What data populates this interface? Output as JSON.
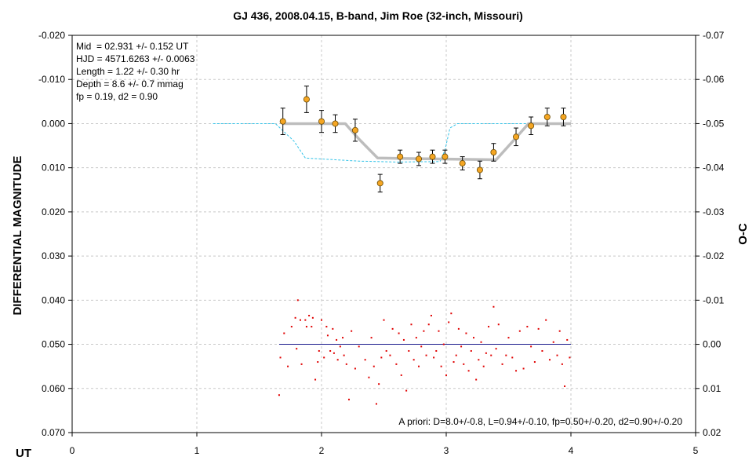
{
  "chart_data": {
    "type": "scatter",
    "title": "GJ 436, 2008.04.15, B-band, Jim Roe (32-inch, Missouri)",
    "xlabel": "UT",
    "ylabel": "DIFFERENTIAL MAGNITUDE",
    "y2label": "O-C",
    "xlim": [
      0,
      5
    ],
    "ylim": [
      -0.02,
      0.07
    ],
    "y2lim": [
      -0.07,
      0.02
    ],
    "y_inverted": true,
    "grid": true,
    "x_ticks": [
      "0",
      "1",
      "2",
      "3",
      "4",
      "5"
    ],
    "y_ticks": [
      "-0.020",
      "-0.010",
      "0.000",
      "0.010",
      "0.020",
      "0.030",
      "0.040",
      "0.050",
      "0.060",
      "0.070"
    ],
    "y2_ticks": [
      "-0.07",
      "-0.06",
      "-0.05",
      "-0.04",
      "-0.03",
      "-0.02",
      "-0.01",
      "0.00",
      "0.01",
      "0.02"
    ],
    "info_lines": [
      "Mid  = 02.931 +/- 0.152 UT",
      "HJD = 4571.6263 +/- 0.0063",
      "Length = 1.22 +/- 0.30 hr",
      "Depth = 8.6 +/- 0.7 mmag",
      "fp = 0.19, d2 = 0.90"
    ],
    "apriori_text": "A priori: D=8.0+/-0.8, L=0.94+/-0.10, fp=0.50+/-0.20, d2=0.90+/-0.20",
    "colors": {
      "binned_points": "#f5a623",
      "fit_curve": "#bdbdbd",
      "apriori_curve": "#33c3e8",
      "residuals": "#e00000",
      "zero_line": "#1a1a8c",
      "grid": "#c8c8c8"
    },
    "series": [
      {
        "kind": "binned",
        "x": [
          1.69,
          1.88,
          2.0,
          2.11,
          2.27,
          2.47,
          2.63,
          2.78,
          2.89,
          2.99,
          3.13,
          3.27,
          3.38,
          3.56,
          3.68,
          3.81,
          3.94
        ],
        "y": [
          -0.0005,
          -0.0055,
          -0.0005,
          0.0,
          0.0015,
          0.0135,
          0.0075,
          0.008,
          0.0075,
          0.0075,
          0.009,
          0.0105,
          0.0065,
          0.003,
          0.0005,
          -0.0015,
          -0.0015
        ],
        "err": [
          0.003,
          0.003,
          0.0025,
          0.002,
          0.0025,
          0.002,
          0.0015,
          0.0015,
          0.0015,
          0.0015,
          0.0015,
          0.002,
          0.002,
          0.002,
          0.002,
          0.002,
          0.002
        ]
      },
      {
        "kind": "fit",
        "x": [
          1.69,
          2.19,
          2.3,
          2.45,
          3.4,
          3.55,
          3.66,
          4.0
        ],
        "y": [
          0.0,
          0.0,
          0.0035,
          0.0078,
          0.0082,
          0.0035,
          0.0,
          0.0
        ]
      },
      {
        "kind": "apriori",
        "x": [
          1.13,
          1.63,
          1.78,
          1.87,
          2.3,
          2.6,
          2.95,
          2.99,
          3.03,
          3.09,
          3.4,
          4.0
        ],
        "y": [
          0.0,
          0.0,
          0.004,
          0.0078,
          0.0085,
          0.0087,
          0.0086,
          0.006,
          0.001,
          0.0,
          0.0,
          0.0
        ]
      },
      {
        "kind": "residuals",
        "y_axis": "right",
        "zero_level": 0.0,
        "x": [
          1.66,
          1.67,
          1.7,
          1.73,
          1.76,
          1.79,
          1.8,
          1.81,
          1.83,
          1.84,
          1.87,
          1.88,
          1.9,
          1.92,
          1.93,
          1.95,
          1.97,
          1.98,
          2.0,
          2.02,
          2.04,
          2.05,
          2.07,
          2.09,
          2.1,
          2.12,
          2.13,
          2.15,
          2.17,
          2.18,
          2.2,
          2.22,
          2.24,
          2.27,
          2.3,
          2.35,
          2.38,
          2.4,
          2.42,
          2.44,
          2.46,
          2.48,
          2.5,
          2.52,
          2.55,
          2.57,
          2.6,
          2.62,
          2.64,
          2.66,
          2.68,
          2.7,
          2.72,
          2.74,
          2.76,
          2.78,
          2.8,
          2.82,
          2.84,
          2.86,
          2.88,
          2.9,
          2.92,
          2.94,
          2.96,
          2.98,
          3.0,
          3.02,
          3.04,
          3.06,
          3.08,
          3.1,
          3.12,
          3.14,
          3.16,
          3.18,
          3.2,
          3.22,
          3.24,
          3.26,
          3.28,
          3.3,
          3.32,
          3.34,
          3.36,
          3.38,
          3.4,
          3.42,
          3.45,
          3.48,
          3.5,
          3.53,
          3.56,
          3.59,
          3.62,
          3.65,
          3.68,
          3.71,
          3.74,
          3.77,
          3.8,
          3.83,
          3.86,
          3.89,
          3.91,
          3.93,
          3.95,
          3.97,
          3.99
        ],
        "y": [
          0.0115,
          0.003,
          -0.0025,
          0.005,
          -0.004,
          -0.006,
          0.001,
          -0.01,
          -0.0055,
          0.0045,
          -0.0055,
          -0.004,
          -0.0065,
          -0.004,
          -0.006,
          0.008,
          0.004,
          0.0015,
          -0.0055,
          0.003,
          -0.004,
          -0.002,
          0.0015,
          -0.0035,
          0.002,
          -0.001,
          0.0035,
          0.0005,
          -0.0015,
          0.0025,
          0.0045,
          0.0125,
          -0.003,
          0.0055,
          0.0005,
          0.0035,
          0.0075,
          -0.0015,
          0.005,
          0.0135,
          0.009,
          0.003,
          -0.0055,
          0.0015,
          0.0025,
          -0.0035,
          0.0045,
          -0.0025,
          0.007,
          -0.001,
          0.0105,
          0.0015,
          -0.0045,
          0.0035,
          -0.0015,
          0.005,
          0.0005,
          -0.003,
          0.0025,
          -0.0045,
          -0.0065,
          0.003,
          0.0015,
          -0.003,
          0.005,
          0.0,
          0.007,
          -0.005,
          -0.007,
          0.004,
          0.0025,
          -0.0035,
          0.0005,
          0.0045,
          -0.0025,
          0.006,
          0.0015,
          -0.0015,
          0.008,
          0.0035,
          -0.0005,
          0.005,
          0.002,
          -0.004,
          0.0025,
          -0.0085,
          0.001,
          -0.0045,
          0.0045,
          0.0025,
          -0.0015,
          0.003,
          0.006,
          -0.003,
          0.0055,
          -0.004,
          0.0005,
          0.004,
          -0.0035,
          0.0015,
          -0.0055,
          0.0035,
          -0.0005,
          0.0025,
          -0.003,
          0.0045,
          0.0095,
          -0.001,
          0.003
        ]
      }
    ]
  }
}
